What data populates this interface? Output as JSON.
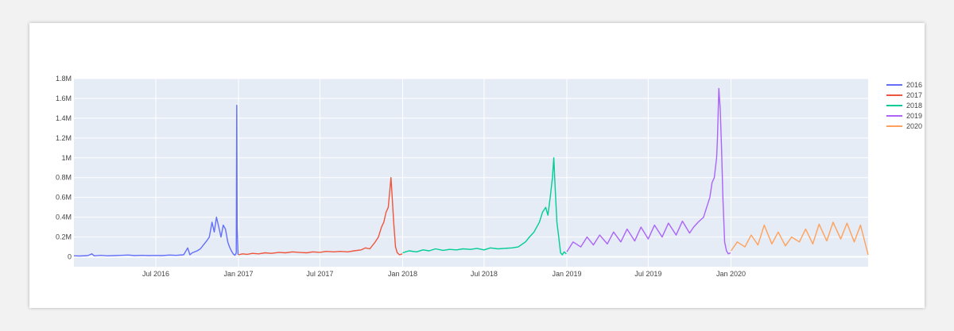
{
  "chart_data": {
    "type": "line",
    "title": "",
    "xlabel": "",
    "ylabel": "",
    "xlim": [
      "2016-01-01",
      "2020-11-01"
    ],
    "ylim": [
      -100000,
      1800000
    ],
    "grid": true,
    "legend_position": "right",
    "yticks": [
      0,
      200000,
      400000,
      600000,
      800000,
      1000000,
      1200000,
      1400000,
      1600000,
      1800000
    ],
    "ytick_labels": [
      "0",
      "0.2M",
      "0.4M",
      "0.6M",
      "0.8M",
      "1M",
      "1.2M",
      "1.4M",
      "1.6M",
      "1.8M"
    ],
    "xticks": [
      "2016-07-01",
      "2017-01-01",
      "2017-07-01",
      "2018-01-01",
      "2018-07-01",
      "2019-01-01",
      "2019-07-01",
      "2020-01-01"
    ],
    "xtick_labels": [
      "Jul 2016",
      "Jan 2017",
      "Jul 2017",
      "Jan 2018",
      "Jul 2018",
      "Jan 2019",
      "Jul 2019",
      "Jan 2020"
    ],
    "series": [
      {
        "name": "2016",
        "color": "#636efa",
        "x": [
          "2016-01-01",
          "2016-01-15",
          "2016-02-01",
          "2016-02-10",
          "2016-02-15",
          "2016-03-01",
          "2016-03-15",
          "2016-04-01",
          "2016-04-15",
          "2016-05-01",
          "2016-05-15",
          "2016-06-01",
          "2016-06-15",
          "2016-07-01",
          "2016-07-15",
          "2016-08-01",
          "2016-08-15",
          "2016-09-01",
          "2016-09-10",
          "2016-09-15",
          "2016-09-20",
          "2016-10-01",
          "2016-10-08",
          "2016-10-15",
          "2016-10-22",
          "2016-10-28",
          "2016-11-03",
          "2016-11-08",
          "2016-11-13",
          "2016-11-18",
          "2016-11-23",
          "2016-11-28",
          "2016-12-03",
          "2016-12-08",
          "2016-12-12",
          "2016-12-16",
          "2016-12-20",
          "2016-12-24",
          "2016-12-27",
          "2016-12-28",
          "2016-12-29",
          "2016-12-31"
        ],
        "y": [
          10000,
          8000,
          12000,
          30000,
          10000,
          15000,
          10000,
          12000,
          15000,
          18000,
          12000,
          15000,
          12000,
          14000,
          12000,
          18000,
          15000,
          20000,
          90000,
          20000,
          40000,
          60000,
          80000,
          120000,
          160000,
          200000,
          350000,
          250000,
          400000,
          300000,
          200000,
          320000,
          280000,
          150000,
          100000,
          60000,
          30000,
          15000,
          40000,
          1530000,
          300000,
          20000
        ]
      },
      {
        "name": "2017",
        "color": "#ef553b",
        "x": [
          "2017-01-01",
          "2017-01-10",
          "2017-01-20",
          "2017-02-01",
          "2017-02-15",
          "2017-03-01",
          "2017-03-15",
          "2017-04-01",
          "2017-04-15",
          "2017-05-01",
          "2017-05-15",
          "2017-06-01",
          "2017-06-15",
          "2017-07-01",
          "2017-07-15",
          "2017-08-01",
          "2017-08-15",
          "2017-09-01",
          "2017-09-15",
          "2017-10-01",
          "2017-10-10",
          "2017-10-20",
          "2017-11-01",
          "2017-11-08",
          "2017-11-15",
          "2017-11-20",
          "2017-11-25",
          "2017-11-30",
          "2017-12-03",
          "2017-12-06",
          "2017-12-09",
          "2017-12-12",
          "2017-12-16",
          "2017-12-20",
          "2017-12-25",
          "2017-12-31"
        ],
        "y": [
          20000,
          30000,
          25000,
          35000,
          30000,
          40000,
          35000,
          45000,
          40000,
          50000,
          45000,
          40000,
          50000,
          45000,
          55000,
          50000,
          55000,
          50000,
          60000,
          70000,
          90000,
          80000,
          150000,
          200000,
          300000,
          350000,
          450000,
          500000,
          650000,
          800000,
          580000,
          350000,
          100000,
          40000,
          20000,
          30000
        ]
      },
      {
        "name": "2018",
        "color": "#00cc96",
        "x": [
          "2018-01-01",
          "2018-01-15",
          "2018-02-01",
          "2018-02-15",
          "2018-03-01",
          "2018-03-15",
          "2018-04-01",
          "2018-04-15",
          "2018-05-01",
          "2018-05-15",
          "2018-06-01",
          "2018-06-15",
          "2018-07-01",
          "2018-07-15",
          "2018-08-01",
          "2018-08-15",
          "2018-09-01",
          "2018-09-15",
          "2018-10-01",
          "2018-10-10",
          "2018-10-20",
          "2018-11-01",
          "2018-11-08",
          "2018-11-15",
          "2018-11-20",
          "2018-11-25",
          "2018-11-30",
          "2018-12-03",
          "2018-12-06",
          "2018-12-10",
          "2018-12-14",
          "2018-12-18",
          "2018-12-22",
          "2018-12-26",
          "2018-12-31"
        ],
        "y": [
          40000,
          60000,
          50000,
          70000,
          60000,
          80000,
          65000,
          75000,
          70000,
          80000,
          75000,
          85000,
          70000,
          90000,
          80000,
          85000,
          90000,
          100000,
          150000,
          200000,
          250000,
          350000,
          450000,
          500000,
          420000,
          600000,
          800000,
          1000000,
          700000,
          350000,
          200000,
          40000,
          20000,
          50000,
          30000
        ]
      },
      {
        "name": "2019",
        "color": "#ab63fa",
        "x": [
          "2019-01-01",
          "2019-01-15",
          "2019-02-01",
          "2019-02-15",
          "2019-03-01",
          "2019-03-15",
          "2019-04-01",
          "2019-04-15",
          "2019-05-01",
          "2019-05-15",
          "2019-06-01",
          "2019-06-15",
          "2019-07-01",
          "2019-07-15",
          "2019-08-01",
          "2019-08-15",
          "2019-09-01",
          "2019-09-15",
          "2019-10-01",
          "2019-10-10",
          "2019-10-20",
          "2019-11-01",
          "2019-11-08",
          "2019-11-15",
          "2019-11-20",
          "2019-11-25",
          "2019-11-30",
          "2019-12-02",
          "2019-12-05",
          "2019-12-08",
          "2019-12-11",
          "2019-12-14",
          "2019-12-18",
          "2019-12-22",
          "2019-12-26",
          "2019-12-31"
        ],
        "y": [
          50000,
          150000,
          100000,
          200000,
          120000,
          220000,
          130000,
          250000,
          150000,
          280000,
          160000,
          300000,
          180000,
          320000,
          200000,
          340000,
          220000,
          360000,
          240000,
          300000,
          350000,
          400000,
          500000,
          600000,
          750000,
          800000,
          1000000,
          1200000,
          1700000,
          1500000,
          1100000,
          600000,
          150000,
          60000,
          30000,
          40000
        ]
      },
      {
        "name": "2020",
        "color": "#ffa15a",
        "x": [
          "2020-01-01",
          "2020-01-15",
          "2020-02-01",
          "2020-02-15",
          "2020-03-01",
          "2020-03-15",
          "2020-04-01",
          "2020-04-15",
          "2020-05-01",
          "2020-05-15",
          "2020-06-01",
          "2020-06-15",
          "2020-07-01",
          "2020-07-15",
          "2020-08-01",
          "2020-08-15",
          "2020-09-01",
          "2020-09-15",
          "2020-10-01",
          "2020-10-15",
          "2020-11-01"
        ],
        "y": [
          60000,
          150000,
          100000,
          220000,
          120000,
          320000,
          130000,
          250000,
          110000,
          200000,
          150000,
          280000,
          130000,
          330000,
          160000,
          350000,
          180000,
          340000,
          150000,
          320000,
          20000
        ]
      }
    ]
  }
}
